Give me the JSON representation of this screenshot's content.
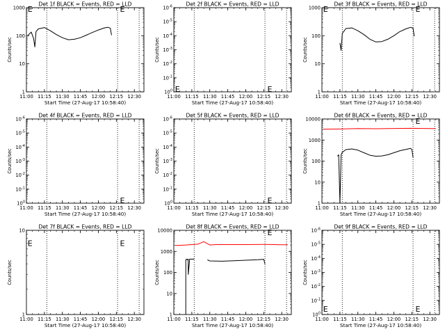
{
  "chart_data": [
    {
      "type": "line",
      "title": "Det 1f BLACK = Events, RED = LLD",
      "xlabel": "Start Time (27-Aug-17 10:58:40)",
      "ylabel": "Counts/sec",
      "xlim": [
        "11:00",
        "12:38"
      ],
      "xticks": [
        "11:00",
        "11:15",
        "11:30",
        "11:45",
        "12:00",
        "12:15",
        "12:30"
      ],
      "yscale": "log",
      "ylim": [
        1,
        1000
      ],
      "yticks": [
        "1",
        "10",
        "100",
        "1000"
      ],
      "vlines": [
        "11:17",
        "12:16",
        "12:34"
      ],
      "markers": [
        {
          "label": "E",
          "x": "11:01",
          "y": 900
        },
        {
          "label": "E",
          "x": "12:18",
          "y": 900
        }
      ],
      "series": [
        {
          "color": "#000000",
          "x": [
            "11:01",
            "11:04",
            "11:06",
            "11:07",
            "11:08",
            "11:10",
            "11:15",
            "11:20",
            "11:25",
            "11:30",
            "11:35",
            "11:40",
            "11:45",
            "11:50",
            "11:55",
            "12:00",
            "12:05",
            "12:08",
            "12:10",
            "12:11"
          ],
          "values": [
            100,
            135,
            80,
            40,
            140,
            175,
            195,
            150,
            110,
            85,
            72,
            75,
            85,
            105,
            130,
            160,
            190,
            200,
            185,
            105
          ]
        }
      ]
    },
    {
      "type": "line",
      "title": "Det 2f BLACK = Events, RED = LLD",
      "xlabel": "Start Time (27-Aug-17 10:58:40)",
      "ylabel": "Counts/sec",
      "xlim": [
        "11:00",
        "12:38"
      ],
      "xticks": [
        "11:00",
        "11:15",
        "11:30",
        "11:45",
        "12:00",
        "12:15",
        "12:30"
      ],
      "yscale": "log",
      "ylim": [
        1,
        1000000
      ],
      "yticks": [
        "10^0",
        "10^-1",
        "10^-2",
        "10^-3",
        "10^-4",
        "10^-5",
        "10^-6"
      ],
      "vlines": [
        "11:17",
        "12:16",
        "12:34"
      ],
      "markers": [
        {
          "label": "E",
          "x": "11:01",
          "y": 1.6
        },
        {
          "label": "E",
          "x": "12:18",
          "y": 1.6
        }
      ],
      "series": []
    },
    {
      "type": "line",
      "title": "Det 3f BLACK = Events, RED = LLD",
      "xlabel": "Start Time (27-Aug-17 10:58:40)",
      "ylabel": "Counts/sec",
      "xlim": [
        "11:00",
        "12:38"
      ],
      "xticks": [
        "11:00",
        "11:15",
        "11:30",
        "11:45",
        "12:00",
        "12:15",
        "12:30"
      ],
      "yscale": "log",
      "ylim": [
        1,
        1000
      ],
      "yticks": [
        "1",
        "10",
        "100",
        "1000"
      ],
      "vlines": [
        "11:17",
        "12:16",
        "12:34"
      ],
      "markers": [
        {
          "label": "E",
          "x": "11:01",
          "y": 900
        },
        {
          "label": "E",
          "x": "12:18",
          "y": 900
        }
      ],
      "series": [
        {
          "color": "#000000",
          "x": [
            "11:15",
            "11:16",
            "11:17",
            "11:20",
            "11:25",
            "11:30",
            "11:35",
            "11:40",
            "11:45",
            "11:50",
            "11:55",
            "12:00",
            "12:05",
            "12:10",
            "12:14",
            "12:16",
            "12:17"
          ],
          "values": [
            55,
            30,
            120,
            180,
            190,
            150,
            110,
            75,
            60,
            62,
            75,
            100,
            140,
            175,
            200,
            185,
            95
          ]
        }
      ]
    },
    {
      "type": "line",
      "title": "Det 4f BLACK = Events, RED = LLD",
      "xlabel": "Start Time (27-Aug-17 10:58:40)",
      "ylabel": "Counts/sec",
      "xlim": [
        "11:00",
        "12:38"
      ],
      "xticks": [
        "11:00",
        "11:15",
        "11:30",
        "11:45",
        "12:00",
        "12:15",
        "12:30"
      ],
      "yscale": "log",
      "ylim": [
        1,
        1000000
      ],
      "yticks": [
        "10^0",
        "10^-1",
        "10^-2",
        "10^-3",
        "10^-4",
        "10^-5",
        "10^-6"
      ],
      "vlines": [
        "11:17",
        "12:16",
        "12:34"
      ],
      "markers": [
        {
          "label": "E",
          "x": "12:18",
          "y": 1.6
        }
      ],
      "series": []
    },
    {
      "type": "line",
      "title": "Det 5f BLACK = Events, RED = LLD",
      "xlabel": "Start Time (27-Aug-17 10:58:40)",
      "ylabel": "Counts/sec",
      "xlim": [
        "11:00",
        "12:38"
      ],
      "xticks": [
        "11:00",
        "11:15",
        "11:30",
        "11:45",
        "12:00",
        "12:15",
        "12:30"
      ],
      "yscale": "log",
      "ylim": [
        1,
        1000000
      ],
      "yticks": [
        "10^0",
        "10^-1",
        "10^-2",
        "10^-3",
        "10^-4",
        "10^-5",
        "10^-6"
      ],
      "vlines": [
        "11:17",
        "12:16",
        "12:34"
      ],
      "markers": [
        {
          "label": "E",
          "x": "12:18",
          "y": 1.6
        }
      ],
      "series": []
    },
    {
      "type": "line",
      "title": "Det 6f BLACK = Events, RED = LLD",
      "xlabel": "Start Time (27-Aug-17 10:58:40)",
      "ylabel": "Counts/sec",
      "xlim": [
        "11:00",
        "12:38"
      ],
      "xticks": [
        "11:00",
        "11:15",
        "11:30",
        "11:45",
        "12:00",
        "12:15",
        "12:30"
      ],
      "yscale": "log",
      "ylim": [
        1,
        10000
      ],
      "yticks": [
        "1",
        "10",
        "100",
        "1000",
        "10000"
      ],
      "vlines": [
        "11:17",
        "12:16",
        "12:34"
      ],
      "markers": [
        {
          "label": "E",
          "x": "12:18",
          "y": 8000
        }
      ],
      "series": [
        {
          "color": "#ff0000",
          "x": [
            "11:01",
            "11:15",
            "11:30",
            "11:45",
            "12:00",
            "12:15",
            "12:30",
            "12:35"
          ],
          "values": [
            3300,
            3350,
            3500,
            3450,
            3550,
            3600,
            3500,
            3500
          ]
        },
        {
          "color": "#000000",
          "x": [
            "11:13",
            "11:14",
            "11:15",
            "11:16",
            "11:17",
            "11:20",
            "11:25",
            "11:30",
            "11:35",
            "11:40",
            "11:45",
            "11:50",
            "11:55",
            "12:00",
            "12:05",
            "12:10",
            "12:14",
            "12:15",
            "12:16"
          ],
          "values": [
            170,
            200,
            1,
            200,
            260,
            350,
            380,
            330,
            250,
            190,
            170,
            175,
            200,
            250,
            310,
            360,
            400,
            360,
            150
          ]
        }
      ]
    },
    {
      "type": "line",
      "title": "Det 7f BLACK = Events, RED = LLD",
      "xlabel": "Start Time (27-Aug-17 10:58:40)",
      "ylabel": "Counts/sec",
      "xlim": [
        "11:00",
        "12:38"
      ],
      "xticks": [
        "11:00",
        "11:15",
        "11:30",
        "11:45",
        "12:00",
        "12:15",
        "12:30"
      ],
      "yscale": "log",
      "ylim": [
        1,
        10
      ],
      "yticks": [
        "1",
        "10"
      ],
      "vlines": [
        "11:17",
        "12:16",
        "12:34"
      ],
      "markers": [
        {
          "label": "E",
          "x": "11:01",
          "y": 7
        },
        {
          "label": "E",
          "x": "12:18",
          "y": 7
        }
      ],
      "series": []
    },
    {
      "type": "line",
      "title": "Det 8f BLACK = Events, RED = LLD",
      "xlabel": "Start Time (27-Aug-17 10:58:40)",
      "ylabel": "Counts/sec",
      "xlim": [
        "11:00",
        "12:38"
      ],
      "xticks": [
        "11:00",
        "11:15",
        "11:30",
        "11:45",
        "12:00",
        "12:15",
        "12:30"
      ],
      "yscale": "log",
      "ylim": [
        1,
        10000
      ],
      "yticks": [
        "1",
        "10",
        "100",
        "1000",
        "10000"
      ],
      "vlines": [
        "11:17",
        "12:16",
        "12:34"
      ],
      "markers": [
        {
          "label": "E",
          "x": "12:18",
          "y": 8000
        }
      ],
      "series": [
        {
          "color": "#ff0000",
          "x": [
            "11:01",
            "11:10",
            "11:20",
            "11:25",
            "11:30",
            "11:35",
            "11:45",
            "12:00",
            "12:15",
            "12:30",
            "12:35"
          ],
          "values": [
            1900,
            2000,
            2200,
            2900,
            2000,
            2100,
            2100,
            2100,
            2150,
            2050,
            2050
          ]
        },
        {
          "color": "#000000",
          "x": [
            "11:10",
            "11:10",
            "11:11",
            "11:11",
            "11:12",
            "11:12",
            "11:13",
            "11:13",
            "11:14",
            "11:15",
            "11:16",
            "11:17"
          ],
          "values": [
            1,
            400,
            430,
            400,
            420,
            80,
            300,
            420,
            430,
            420,
            430,
            420
          ]
        },
        {
          "color": "#000000",
          "x": [
            "11:28",
            "11:30",
            "11:40",
            "11:50",
            "12:00",
            "12:10",
            "12:15",
            "12:16"
          ],
          "values": [
            400,
            350,
            340,
            360,
            380,
            400,
            420,
            250
          ]
        }
      ]
    },
    {
      "type": "line",
      "title": "Det 9f BLACK = Events, RED = LLD",
      "xlabel": "Start Time (27-Aug-17 10:58:40)",
      "ylabel": "Counts/sec",
      "xlim": [
        "11:00",
        "12:38"
      ],
      "xticks": [
        "11:00",
        "11:15",
        "11:30",
        "11:45",
        "12:00",
        "12:15",
        "12:30"
      ],
      "yscale": "log",
      "ylim": [
        1,
        1000000
      ],
      "yticks": [
        "10^0",
        "10^-1",
        "10^-2",
        "10^-3",
        "10^-4",
        "10^-5",
        "10^-6"
      ],
      "vlines": [
        "11:17",
        "12:16",
        "12:34"
      ],
      "markers": [
        {
          "label": "E",
          "x": "11:01",
          "y": 2.5
        },
        {
          "label": "E",
          "x": "12:18",
          "y": 2.5
        }
      ],
      "series": []
    }
  ]
}
